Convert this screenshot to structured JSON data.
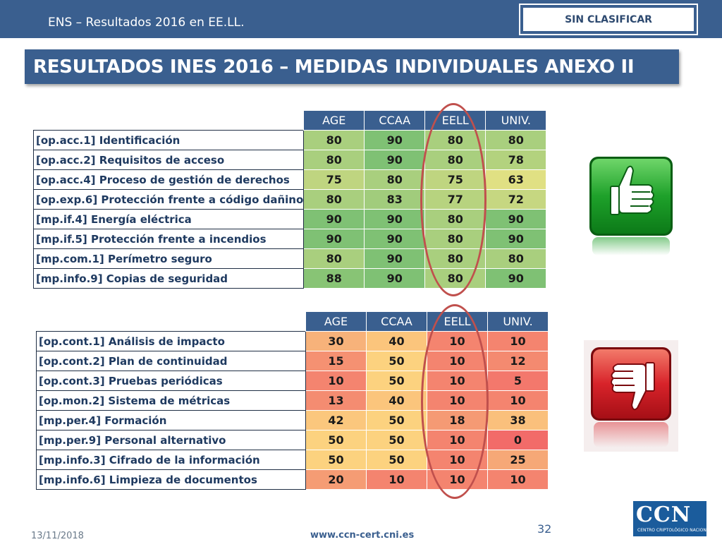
{
  "header": {
    "title": "ENS – Resultados 2016 en EE.LL.",
    "classification": "SIN CLASIFICAR"
  },
  "slide_title": "RESULTADOS INES 2016 – MEDIDAS INDIVIDUALES ANEXO II",
  "columns": [
    "AGE",
    "CCAA",
    "EELL",
    "UNIV."
  ],
  "table_positive": [
    {
      "label": "[op.acc.1] Identificación",
      "values": [
        "80",
        "90",
        "80",
        "80"
      ],
      "colors": [
        "#a9cf7e",
        "#7fc174",
        "#a9cf7e",
        "#a9cf7e"
      ]
    },
    {
      "label": "[op.acc.2] Requisitos de acceso",
      "values": [
        "80",
        "90",
        "80",
        "78"
      ],
      "colors": [
        "#a9cf7e",
        "#7fc174",
        "#a9cf7e",
        "#b3d27e"
      ]
    },
    {
      "label": "[op.acc.4] Proceso de gestión de derechos",
      "values": [
        "75",
        "80",
        "75",
        "63"
      ],
      "colors": [
        "#bfd580",
        "#a9cf7e",
        "#bfd580",
        "#e0e083"
      ]
    },
    {
      "label": "[op.exp.6] Protección frente a código dañino",
      "values": [
        "80",
        "83",
        "77",
        "72"
      ],
      "colors": [
        "#a9cf7e",
        "#a1cc7c",
        "#b7d37f",
        "#c6d781"
      ]
    },
    {
      "label": "[mp.if.4] Energía eléctrica",
      "values": [
        "90",
        "90",
        "80",
        "90"
      ],
      "colors": [
        "#7fc174",
        "#7fc174",
        "#a9cf7e",
        "#7fc174"
      ]
    },
    {
      "label": "[mp.if.5] Protección frente a incendios",
      "values": [
        "90",
        "90",
        "80",
        "90"
      ],
      "colors": [
        "#7fc174",
        "#7fc174",
        "#a9cf7e",
        "#7fc174"
      ]
    },
    {
      "label": "[mp.com.1] Perímetro seguro",
      "values": [
        "80",
        "90",
        "80",
        "80"
      ],
      "colors": [
        "#a9cf7e",
        "#7fc174",
        "#a9cf7e",
        "#a9cf7e"
      ]
    },
    {
      "label": "[mp.info.9] Copias de seguridad",
      "values": [
        "88",
        "90",
        "80",
        "90"
      ],
      "colors": [
        "#88c475",
        "#7fc174",
        "#a9cf7e",
        "#7fc174"
      ]
    }
  ],
  "table_negative": [
    {
      "label": "[op.cont.1] Análisis de impacto",
      "values": [
        "30",
        "40",
        "10",
        "10"
      ],
      "colors": [
        "#f7b27a",
        "#fbc57c",
        "#f4846f",
        "#f4846f"
      ]
    },
    {
      "label": "[op.cont.2] Plan de continuidad",
      "values": [
        "15",
        "50",
        "10",
        "12"
      ],
      "colors": [
        "#f59172",
        "#fcd27f",
        "#f4846f",
        "#f48a70"
      ]
    },
    {
      "label": "[op.cont.3] Pruebas periódicas",
      "values": [
        "10",
        "50",
        "10",
        "5"
      ],
      "colors": [
        "#f4846f",
        "#fcd27f",
        "#f4846f",
        "#f3786c"
      ]
    },
    {
      "label": "[op.mon.2] Sistema de métricas",
      "values": [
        "13",
        "40",
        "10",
        "10"
      ],
      "colors": [
        "#f48c71",
        "#fbc57c",
        "#f4846f",
        "#f4846f"
      ]
    },
    {
      "label": "[mp.per.4] Formación",
      "values": [
        "42",
        "50",
        "18",
        "38"
      ],
      "colors": [
        "#fbc77d",
        "#fcd27f",
        "#f59a74",
        "#fac07c"
      ]
    },
    {
      "label": "[mp.per.9] Personal alternativo",
      "values": [
        "50",
        "50",
        "10",
        "0"
      ],
      "colors": [
        "#fcd27f",
        "#fcd27f",
        "#f4846f",
        "#f26b69"
      ]
    },
    {
      "label": "[mp.info.3] Cifrado de la información",
      "values": [
        "50",
        "50",
        "10",
        "25"
      ],
      "colors": [
        "#fcd27f",
        "#fcd27f",
        "#f4846f",
        "#f6a877"
      ]
    },
    {
      "label": "[mp.info.6] Limpieza de documentos",
      "values": [
        "20",
        "10",
        "10",
        "10"
      ],
      "colors": [
        "#f59c74",
        "#f4846f",
        "#f4846f",
        "#f4846f"
      ]
    }
  ],
  "footer": {
    "date": "13/11/2018",
    "url": "www.ccn-cert.cni.es",
    "page": "32"
  },
  "logo": {
    "letters": "CCN",
    "subtitle": "CENTRO CRIPTOLÓGICO NACIONAL"
  },
  "icons": {
    "positive": "thumbs-up-icon",
    "negative": "thumbs-down-icon"
  }
}
